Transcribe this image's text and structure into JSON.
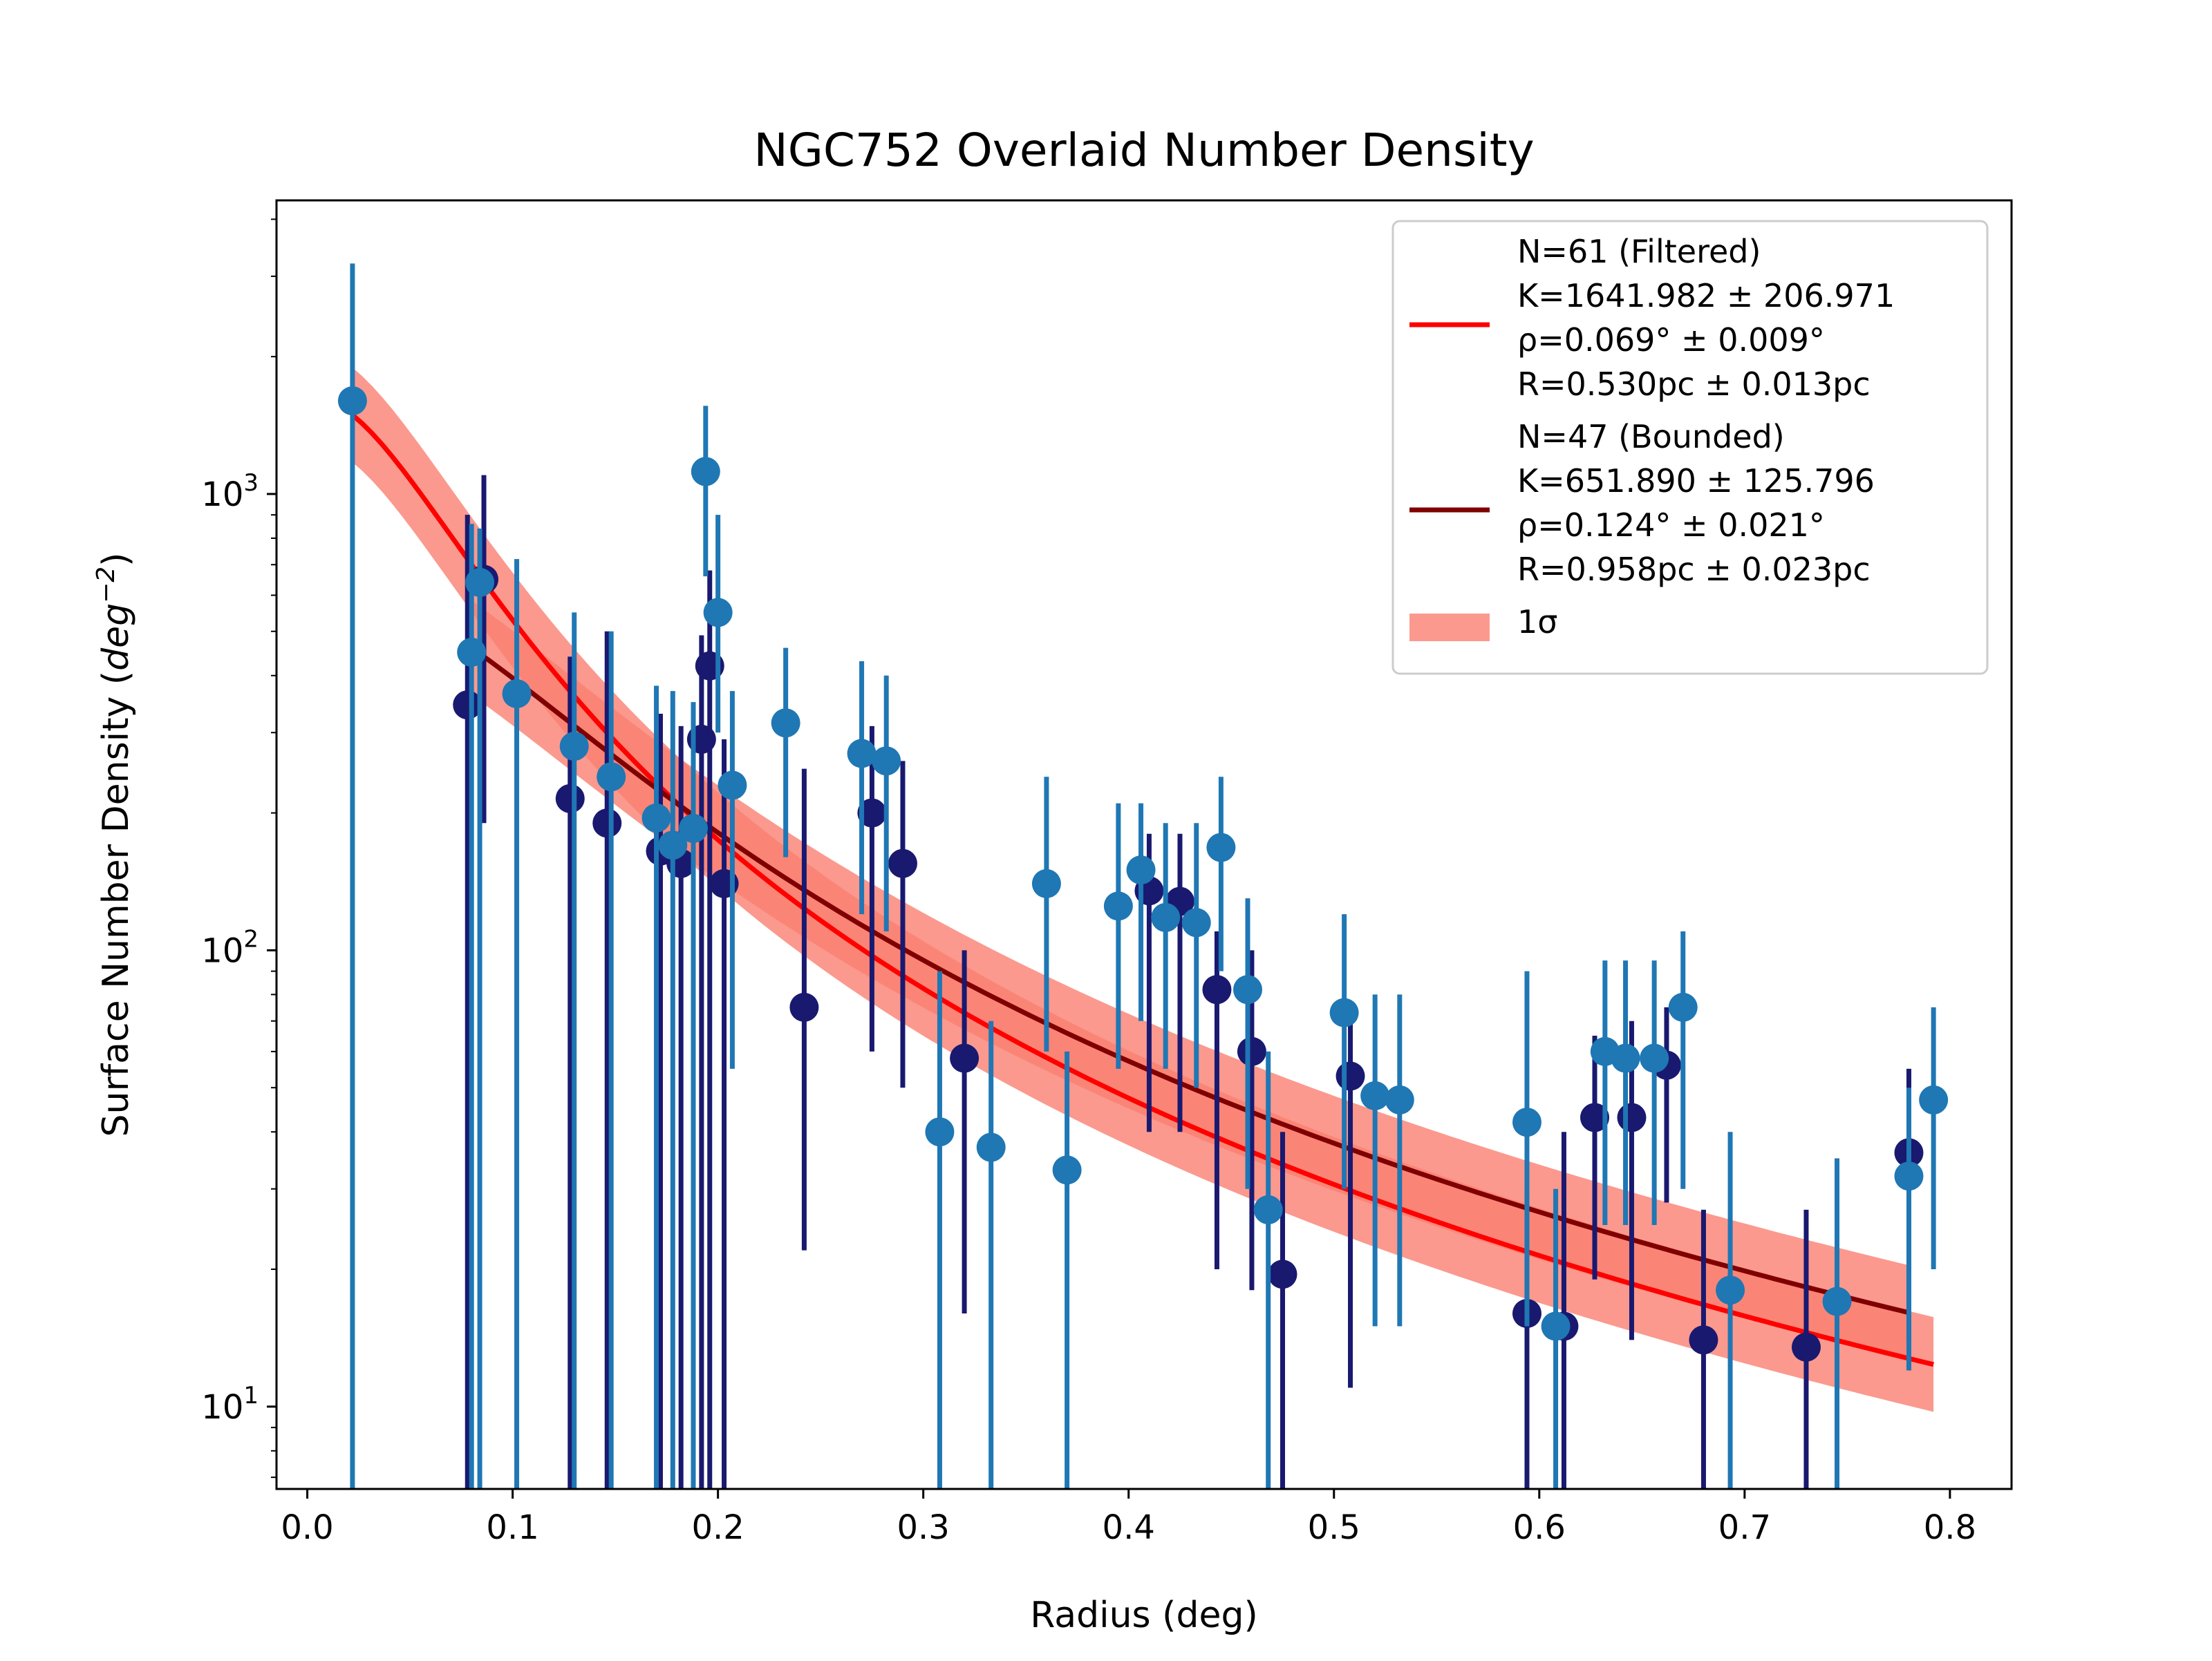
{
  "chart_data": {
    "type": "scatter",
    "title": "NGC752 Overlaid Number Density",
    "xlabel": "Radius (deg)",
    "ylabel_main": "Surface Number Density (",
    "ylabel_italic": "deg",
    "ylabel_sup": "−2",
    "ylabel_close": ")",
    "xlim": [
      -0.015,
      0.83
    ],
    "ylim": [
      6.6,
      4400
    ],
    "yscale": "log",
    "grid": false,
    "legend_position": "top-right",
    "x_ticks": [
      {
        "value": 0.0,
        "label": "0.0"
      },
      {
        "value": 0.1,
        "label": "0.1"
      },
      {
        "value": 0.2,
        "label": "0.2"
      },
      {
        "value": 0.3,
        "label": "0.3"
      },
      {
        "value": 0.4,
        "label": "0.4"
      },
      {
        "value": 0.5,
        "label": "0.5"
      },
      {
        "value": 0.6,
        "label": "0.6"
      },
      {
        "value": 0.7,
        "label": "0.7"
      },
      {
        "value": 0.8,
        "label": "0.8"
      }
    ],
    "y_ticks": [
      {
        "value": 10,
        "base": "10",
        "exp": "1"
      },
      {
        "value": 100,
        "base": "10",
        "exp": "2"
      },
      {
        "value": 1000,
        "base": "10",
        "exp": "3"
      }
    ],
    "colors": {
      "filtered_points": "#1f77b4",
      "bounded_points": "#191970",
      "filtered_fit": "#ff0000",
      "bounded_fit": "#800000",
      "sigma_band": "#fa8072"
    },
    "fits": [
      {
        "K": 1641.982,
        "rho": 0.069,
        "x_range": [
          0.022,
          0.792
        ]
      },
      {
        "K": 651.89,
        "rho": 0.124,
        "x_range": [
          0.08,
          0.78
        ]
      }
    ],
    "legend": [
      {
        "key": "filtered",
        "lines": [
          "N=61 (Filtered)",
          "K=1641.982 ± 206.971",
          "ρ=0.069° ± 0.009°",
          "R=0.530pc ± 0.013pc"
        ]
      },
      {
        "key": "bounded",
        "lines": [
          "N=47 (Bounded)",
          "K=651.890 ± 125.796",
          "ρ=0.124° ± 0.021°",
          "R=0.958pc ± 0.023pc"
        ]
      },
      {
        "key": "sigma",
        "lines": [
          "1σ"
        ]
      }
    ],
    "series": [
      {
        "key": "bounded",
        "points": [
          {
            "x": 0.078,
            "y": 345,
            "lo": 6.6,
            "hi": 900
          },
          {
            "x": 0.086,
            "y": 650,
            "lo": 190,
            "hi": 1100
          },
          {
            "x": 0.128,
            "y": 215,
            "lo": 6.6,
            "hi": 440
          },
          {
            "x": 0.146,
            "y": 190,
            "lo": 6.6,
            "hi": 500
          },
          {
            "x": 0.172,
            "y": 165,
            "lo": 6.6,
            "hi": 330
          },
          {
            "x": 0.182,
            "y": 155,
            "lo": 6.6,
            "hi": 310
          },
          {
            "x": 0.192,
            "y": 290,
            "lo": 6.6,
            "hi": 490
          },
          {
            "x": 0.196,
            "y": 420,
            "lo": 6.6,
            "hi": 680
          },
          {
            "x": 0.203,
            "y": 140,
            "lo": 6.6,
            "hi": 290
          },
          {
            "x": 0.242,
            "y": 75,
            "lo": 22,
            "hi": 250
          },
          {
            "x": 0.275,
            "y": 200,
            "lo": 60,
            "hi": 310
          },
          {
            "x": 0.29,
            "y": 155,
            "lo": 50,
            "hi": 260
          },
          {
            "x": 0.32,
            "y": 58,
            "lo": 16,
            "hi": 100
          },
          {
            "x": 0.41,
            "y": 135,
            "lo": 40,
            "hi": 180
          },
          {
            "x": 0.425,
            "y": 128,
            "lo": 40,
            "hi": 180
          },
          {
            "x": 0.443,
            "y": 82,
            "lo": 20,
            "hi": 110
          },
          {
            "x": 0.46,
            "y": 60,
            "lo": 18,
            "hi": 100
          },
          {
            "x": 0.475,
            "y": 19.5,
            "lo": 6.6,
            "hi": 40
          },
          {
            "x": 0.508,
            "y": 53,
            "lo": 11,
            "hi": 70
          },
          {
            "x": 0.594,
            "y": 16,
            "lo": 6.6,
            "hi": 30
          },
          {
            "x": 0.612,
            "y": 15,
            "lo": 6.6,
            "hi": 40
          },
          {
            "x": 0.627,
            "y": 43,
            "lo": 19,
            "hi": 65
          },
          {
            "x": 0.645,
            "y": 43,
            "lo": 14,
            "hi": 70
          },
          {
            "x": 0.662,
            "y": 56,
            "lo": 28,
            "hi": 75
          },
          {
            "x": 0.68,
            "y": 14,
            "lo": 6.6,
            "hi": 27
          },
          {
            "x": 0.73,
            "y": 13.5,
            "lo": 6.6,
            "hi": 27
          },
          {
            "x": 0.78,
            "y": 36,
            "lo": 14,
            "hi": 55
          }
        ]
      },
      {
        "key": "filtered",
        "points": [
          {
            "x": 0.022,
            "y": 1600,
            "lo": 6.6,
            "hi": 3200
          },
          {
            "x": 0.08,
            "y": 450,
            "lo": 6.6,
            "hi": 860
          },
          {
            "x": 0.084,
            "y": 640,
            "lo": 6.6,
            "hi": 840
          },
          {
            "x": 0.102,
            "y": 365,
            "lo": 6.6,
            "hi": 720
          },
          {
            "x": 0.13,
            "y": 280,
            "lo": 6.6,
            "hi": 550
          },
          {
            "x": 0.148,
            "y": 240,
            "lo": 6.6,
            "hi": 500
          },
          {
            "x": 0.17,
            "y": 195,
            "lo": 6.6,
            "hi": 380
          },
          {
            "x": 0.178,
            "y": 170,
            "lo": 6.6,
            "hi": 370
          },
          {
            "x": 0.188,
            "y": 185,
            "lo": 6.6,
            "hi": 350
          },
          {
            "x": 0.194,
            "y": 1120,
            "lo": 660,
            "hi": 1560
          },
          {
            "x": 0.2,
            "y": 550,
            "lo": 300,
            "hi": 900
          },
          {
            "x": 0.207,
            "y": 230,
            "lo": 55,
            "hi": 370
          },
          {
            "x": 0.233,
            "y": 315,
            "lo": 160,
            "hi": 460
          },
          {
            "x": 0.27,
            "y": 270,
            "lo": 120,
            "hi": 430
          },
          {
            "x": 0.282,
            "y": 260,
            "lo": 110,
            "hi": 400
          },
          {
            "x": 0.308,
            "y": 40,
            "lo": 6.6,
            "hi": 90
          },
          {
            "x": 0.333,
            "y": 37,
            "lo": 6.6,
            "hi": 70
          },
          {
            "x": 0.36,
            "y": 140,
            "lo": 60,
            "hi": 240
          },
          {
            "x": 0.37,
            "y": 33,
            "lo": 6.6,
            "hi": 60
          },
          {
            "x": 0.395,
            "y": 125,
            "lo": 55,
            "hi": 210
          },
          {
            "x": 0.406,
            "y": 150,
            "lo": 70,
            "hi": 210
          },
          {
            "x": 0.418,
            "y": 118,
            "lo": 55,
            "hi": 190
          },
          {
            "x": 0.433,
            "y": 115,
            "lo": 50,
            "hi": 190
          },
          {
            "x": 0.445,
            "y": 168,
            "lo": 90,
            "hi": 240
          },
          {
            "x": 0.458,
            "y": 82,
            "lo": 30,
            "hi": 130
          },
          {
            "x": 0.468,
            "y": 27,
            "lo": 6.6,
            "hi": 60
          },
          {
            "x": 0.505,
            "y": 73,
            "lo": 30,
            "hi": 120
          },
          {
            "x": 0.52,
            "y": 48,
            "lo": 15,
            "hi": 80
          },
          {
            "x": 0.532,
            "y": 47,
            "lo": 15,
            "hi": 80
          },
          {
            "x": 0.594,
            "y": 42,
            "lo": 15,
            "hi": 90
          },
          {
            "x": 0.608,
            "y": 15,
            "lo": 6.6,
            "hi": 30
          },
          {
            "x": 0.632,
            "y": 60,
            "lo": 25,
            "hi": 95
          },
          {
            "x": 0.642,
            "y": 58,
            "lo": 25,
            "hi": 95
          },
          {
            "x": 0.656,
            "y": 58,
            "lo": 25,
            "hi": 95
          },
          {
            "x": 0.67,
            "y": 75,
            "lo": 30,
            "hi": 110
          },
          {
            "x": 0.693,
            "y": 18,
            "lo": 6.6,
            "hi": 40
          },
          {
            "x": 0.745,
            "y": 17,
            "lo": 6.6,
            "hi": 35
          },
          {
            "x": 0.78,
            "y": 32,
            "lo": 12,
            "hi": 50
          },
          {
            "x": 0.792,
            "y": 47,
            "lo": 20,
            "hi": 75
          }
        ]
      }
    ]
  }
}
